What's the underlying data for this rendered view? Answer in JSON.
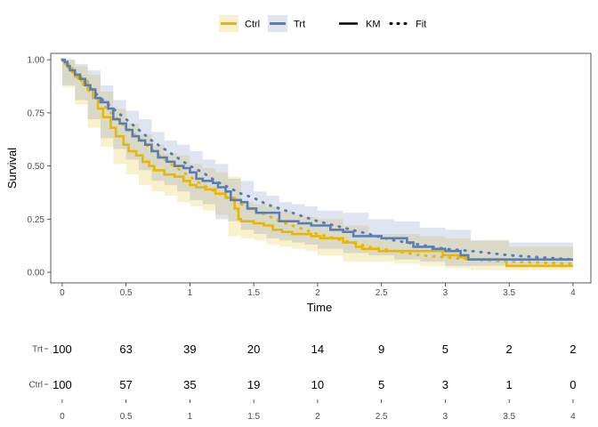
{
  "chart_data": {
    "type": "line",
    "title": "",
    "xlabel": "Time",
    "ylabel": "Survival",
    "xlim": [
      -0.09,
      4.14
    ],
    "ylim": [
      -0.05,
      1.03
    ],
    "xticks": [
      0,
      0.5,
      1,
      1.5,
      2,
      2.5,
      3,
      3.5,
      4
    ],
    "xtick_labels": [
      "0",
      "0.5",
      "1",
      "1.5",
      "2",
      "2.5",
      "3",
      "3.5",
      "4"
    ],
    "yticks": [
      0,
      0.25,
      0.5,
      0.75,
      1
    ],
    "ytick_labels": [
      "0.00",
      "0.25",
      "0.50",
      "0.75",
      "1.00"
    ],
    "grid": false,
    "legend": {
      "position": "top",
      "groups": [
        {
          "label": "Ctrl",
          "color": "#E7B800"
        },
        {
          "label": "Trt",
          "color": "#5B7DB6"
        }
      ],
      "linetypes": [
        {
          "label": "KM",
          "style": "solid"
        },
        {
          "label": "Fit",
          "style": "dotted"
        }
      ]
    },
    "series": [
      {
        "name": "Ctrl",
        "color": "#E7B800",
        "km": [
          [
            0,
            1
          ],
          [
            0.02,
            0.98
          ],
          [
            0.05,
            0.96
          ],
          [
            0.08,
            0.94
          ],
          [
            0.1,
            0.92
          ],
          [
            0.15,
            0.9
          ],
          [
            0.2,
            0.86
          ],
          [
            0.24,
            0.82
          ],
          [
            0.28,
            0.77
          ],
          [
            0.32,
            0.73
          ],
          [
            0.38,
            0.68
          ],
          [
            0.42,
            0.64
          ],
          [
            0.48,
            0.6
          ],
          [
            0.52,
            0.57
          ],
          [
            0.58,
            0.55
          ],
          [
            0.63,
            0.52
          ],
          [
            0.68,
            0.5
          ],
          [
            0.72,
            0.48
          ],
          [
            0.8,
            0.46
          ],
          [
            0.88,
            0.45
          ],
          [
            0.95,
            0.43
          ],
          [
            1.0,
            0.41
          ],
          [
            1.05,
            0.4
          ],
          [
            1.12,
            0.39
          ],
          [
            1.2,
            0.37
          ],
          [
            1.28,
            0.35
          ],
          [
            1.35,
            0.3
          ],
          [
            1.38,
            0.25
          ],
          [
            1.4,
            0.24
          ],
          [
            1.5,
            0.23
          ],
          [
            1.58,
            0.22
          ],
          [
            1.65,
            0.2
          ],
          [
            1.72,
            0.19
          ],
          [
            1.8,
            0.18
          ],
          [
            1.95,
            0.17
          ],
          [
            2.02,
            0.16
          ],
          [
            2.2,
            0.14
          ],
          [
            2.3,
            0.12
          ],
          [
            2.35,
            0.11
          ],
          [
            2.48,
            0.1
          ],
          [
            2.6,
            0.1
          ],
          [
            2.98,
            0.08
          ],
          [
            3.1,
            0.07
          ],
          [
            3.18,
            0.06
          ],
          [
            3.48,
            0.03
          ],
          [
            4.0,
            0.03
          ]
        ],
        "ci_lower": [
          [
            0,
            1
          ],
          [
            0.1,
            0.87
          ],
          [
            0.2,
            0.79
          ],
          [
            0.3,
            0.68
          ],
          [
            0.4,
            0.59
          ],
          [
            0.5,
            0.51
          ],
          [
            0.6,
            0.46
          ],
          [
            0.7,
            0.41
          ],
          [
            0.8,
            0.38
          ],
          [
            0.9,
            0.36
          ],
          [
            1.0,
            0.33
          ],
          [
            1.1,
            0.31
          ],
          [
            1.2,
            0.29
          ],
          [
            1.3,
            0.27
          ],
          [
            1.4,
            0.17
          ],
          [
            1.5,
            0.16
          ],
          [
            1.6,
            0.15
          ],
          [
            1.7,
            0.13
          ],
          [
            1.8,
            0.12
          ],
          [
            1.9,
            0.11
          ],
          [
            2.0,
            0.1
          ],
          [
            2.2,
            0.08
          ],
          [
            2.4,
            0.05
          ],
          [
            2.6,
            0.05
          ],
          [
            2.8,
            0.04
          ],
          [
            3.0,
            0.03
          ],
          [
            3.2,
            0.02
          ],
          [
            3.5,
            0.01
          ],
          [
            4.0,
            0.01
          ]
        ],
        "ci_upper": [
          [
            0,
            1
          ],
          [
            0.1,
            0.97
          ],
          [
            0.2,
            0.93
          ],
          [
            0.3,
            0.85
          ],
          [
            0.4,
            0.77
          ],
          [
            0.5,
            0.7
          ],
          [
            0.6,
            0.65
          ],
          [
            0.7,
            0.6
          ],
          [
            0.8,
            0.56
          ],
          [
            0.9,
            0.55
          ],
          [
            1.0,
            0.51
          ],
          [
            1.1,
            0.49
          ],
          [
            1.2,
            0.47
          ],
          [
            1.3,
            0.45
          ],
          [
            1.4,
            0.33
          ],
          [
            1.5,
            0.32
          ],
          [
            1.6,
            0.31
          ],
          [
            1.7,
            0.29
          ],
          [
            1.8,
            0.27
          ],
          [
            1.9,
            0.26
          ],
          [
            2.0,
            0.25
          ],
          [
            2.2,
            0.22
          ],
          [
            2.4,
            0.18
          ],
          [
            2.6,
            0.18
          ],
          [
            2.8,
            0.17
          ],
          [
            3.0,
            0.16
          ],
          [
            3.2,
            0.15
          ],
          [
            3.5,
            0.12
          ],
          [
            4.0,
            0.1
          ]
        ],
        "fit": [
          [
            0,
            1
          ],
          [
            0.1,
            0.93
          ],
          [
            0.2,
            0.86
          ],
          [
            0.3,
            0.8
          ],
          [
            0.4,
            0.74
          ],
          [
            0.5,
            0.68
          ],
          [
            0.6,
            0.63
          ],
          [
            0.7,
            0.58
          ],
          [
            0.8,
            0.53
          ],
          [
            0.9,
            0.49
          ],
          [
            1.0,
            0.45
          ],
          [
            1.1,
            0.41
          ],
          [
            1.2,
            0.38
          ],
          [
            1.3,
            0.35
          ],
          [
            1.4,
            0.32
          ],
          [
            1.5,
            0.29
          ],
          [
            1.6,
            0.27
          ],
          [
            1.7,
            0.24
          ],
          [
            1.8,
            0.22
          ],
          [
            1.9,
            0.2
          ],
          [
            2.0,
            0.18
          ],
          [
            2.2,
            0.15
          ],
          [
            2.4,
            0.12
          ],
          [
            2.6,
            0.1
          ],
          [
            2.8,
            0.08
          ],
          [
            3.0,
            0.07
          ],
          [
            3.2,
            0.06
          ],
          [
            3.5,
            0.05
          ],
          [
            4.0,
            0.04
          ]
        ]
      },
      {
        "name": "Trt",
        "color": "#5B7DB6",
        "km": [
          [
            0,
            1
          ],
          [
            0.02,
            0.99
          ],
          [
            0.04,
            0.97
          ],
          [
            0.06,
            0.95
          ],
          [
            0.1,
            0.93
          ],
          [
            0.14,
            0.91
          ],
          [
            0.18,
            0.88
          ],
          [
            0.22,
            0.86
          ],
          [
            0.26,
            0.82
          ],
          [
            0.3,
            0.8
          ],
          [
            0.36,
            0.77
          ],
          [
            0.4,
            0.72
          ],
          [
            0.45,
            0.7
          ],
          [
            0.5,
            0.67
          ],
          [
            0.55,
            0.64
          ],
          [
            0.6,
            0.62
          ],
          [
            0.65,
            0.6
          ],
          [
            0.7,
            0.57
          ],
          [
            0.75,
            0.54
          ],
          [
            0.82,
            0.52
          ],
          [
            0.88,
            0.5
          ],
          [
            0.95,
            0.49
          ],
          [
            1.0,
            0.47
          ],
          [
            1.05,
            0.44
          ],
          [
            1.1,
            0.43
          ],
          [
            1.18,
            0.42
          ],
          [
            1.22,
            0.4
          ],
          [
            1.28,
            0.38
          ],
          [
            1.32,
            0.34
          ],
          [
            1.4,
            0.33
          ],
          [
            1.45,
            0.3
          ],
          [
            1.52,
            0.28
          ],
          [
            1.7,
            0.24
          ],
          [
            1.85,
            0.23
          ],
          [
            1.95,
            0.22
          ],
          [
            2.1,
            0.2
          ],
          [
            2.2,
            0.19
          ],
          [
            2.28,
            0.17
          ],
          [
            2.38,
            0.17
          ],
          [
            2.5,
            0.16
          ],
          [
            2.7,
            0.14
          ],
          [
            2.75,
            0.12
          ],
          [
            2.9,
            0.11
          ],
          [
            3.0,
            0.1
          ],
          [
            3.12,
            0.08
          ],
          [
            3.18,
            0.06
          ],
          [
            4.0,
            0.06
          ]
        ],
        "ci_lower": [
          [
            0,
            1
          ],
          [
            0.1,
            0.88
          ],
          [
            0.2,
            0.81
          ],
          [
            0.3,
            0.72
          ],
          [
            0.4,
            0.63
          ],
          [
            0.5,
            0.58
          ],
          [
            0.6,
            0.53
          ],
          [
            0.7,
            0.48
          ],
          [
            0.8,
            0.43
          ],
          [
            0.9,
            0.41
          ],
          [
            1.0,
            0.38
          ],
          [
            1.1,
            0.34
          ],
          [
            1.2,
            0.32
          ],
          [
            1.3,
            0.25
          ],
          [
            1.4,
            0.24
          ],
          [
            1.5,
            0.2
          ],
          [
            1.6,
            0.18
          ],
          [
            1.7,
            0.16
          ],
          [
            1.8,
            0.15
          ],
          [
            1.9,
            0.14
          ],
          [
            2.0,
            0.13
          ],
          [
            2.2,
            0.11
          ],
          [
            2.4,
            0.09
          ],
          [
            2.6,
            0.08
          ],
          [
            2.8,
            0.06
          ],
          [
            3.0,
            0.05
          ],
          [
            3.2,
            0.03
          ],
          [
            3.5,
            0.03
          ],
          [
            4.0,
            0.03
          ]
        ],
        "ci_upper": [
          [
            0,
            1
          ],
          [
            0.1,
            0.98
          ],
          [
            0.2,
            0.95
          ],
          [
            0.3,
            0.88
          ],
          [
            0.4,
            0.81
          ],
          [
            0.5,
            0.76
          ],
          [
            0.6,
            0.72
          ],
          [
            0.7,
            0.66
          ],
          [
            0.8,
            0.62
          ],
          [
            0.9,
            0.6
          ],
          [
            1.0,
            0.57
          ],
          [
            1.1,
            0.53
          ],
          [
            1.2,
            0.51
          ],
          [
            1.3,
            0.44
          ],
          [
            1.4,
            0.43
          ],
          [
            1.5,
            0.38
          ],
          [
            1.6,
            0.36
          ],
          [
            1.7,
            0.33
          ],
          [
            1.8,
            0.32
          ],
          [
            1.9,
            0.31
          ],
          [
            2.0,
            0.29
          ],
          [
            2.2,
            0.28
          ],
          [
            2.4,
            0.25
          ],
          [
            2.6,
            0.24
          ],
          [
            2.8,
            0.21
          ],
          [
            3.0,
            0.2
          ],
          [
            3.2,
            0.15
          ],
          [
            3.5,
            0.14
          ],
          [
            4.0,
            0.13
          ]
        ],
        "fit": [
          [
            0,
            1
          ],
          [
            0.1,
            0.94
          ],
          [
            0.2,
            0.88
          ],
          [
            0.3,
            0.82
          ],
          [
            0.4,
            0.77
          ],
          [
            0.5,
            0.72
          ],
          [
            0.6,
            0.67
          ],
          [
            0.7,
            0.62
          ],
          [
            0.8,
            0.58
          ],
          [
            0.9,
            0.54
          ],
          [
            1.0,
            0.5
          ],
          [
            1.1,
            0.47
          ],
          [
            1.2,
            0.43
          ],
          [
            1.3,
            0.4
          ],
          [
            1.4,
            0.37
          ],
          [
            1.5,
            0.35
          ],
          [
            1.6,
            0.32
          ],
          [
            1.7,
            0.3
          ],
          [
            1.8,
            0.28
          ],
          [
            1.9,
            0.26
          ],
          [
            2.0,
            0.24
          ],
          [
            2.2,
            0.21
          ],
          [
            2.4,
            0.18
          ],
          [
            2.6,
            0.15
          ],
          [
            2.8,
            0.13
          ],
          [
            3.0,
            0.11
          ],
          [
            3.2,
            0.1
          ],
          [
            3.5,
            0.08
          ],
          [
            4.0,
            0.06
          ]
        ]
      }
    ],
    "risk_table": {
      "times": [
        0,
        0.5,
        1,
        1.5,
        2,
        2.5,
        3,
        3.5,
        4
      ],
      "time_labels": [
        "0",
        "0.5",
        "1",
        "1.5",
        "2",
        "2.5",
        "3",
        "3.5",
        "4"
      ],
      "rows": [
        {
          "group": "Trt",
          "values": [
            100,
            63,
            39,
            20,
            14,
            9,
            5,
            2,
            2
          ]
        },
        {
          "group": "Ctrl",
          "values": [
            100,
            57,
            35,
            19,
            10,
            5,
            3,
            1,
            0
          ]
        }
      ]
    }
  }
}
